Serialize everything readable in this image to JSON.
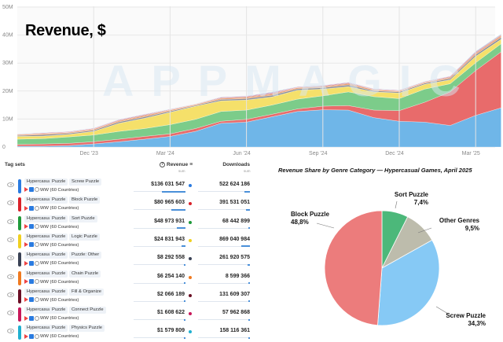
{
  "header": {
    "title": "Revenue, $",
    "watermark": "APPMAGIC"
  },
  "chart_data": [
    {
      "type": "area",
      "stacked": true,
      "title": "Revenue, $",
      "x": [
        "Sep '23",
        "Oct '23",
        "Nov '23",
        "Dec '23",
        "Jan '24",
        "Feb '24",
        "Mar '24",
        "Apr '24",
        "May '24",
        "Jun '24",
        "Jul '24",
        "Aug '24",
        "Sep '24",
        "Oct '24",
        "Nov '24",
        "Dec '24",
        "Jan '25",
        "Feb '25",
        "Mar '25",
        "Apr '25"
      ],
      "x_tick_labels": [
        "Dec '23",
        "Mar '24",
        "Jun '24",
        "Sep '24",
        "Dec '24",
        "Mar '25"
      ],
      "y_tick_labels": [
        "0",
        "10M",
        "20M",
        "30M",
        "40M",
        "50M"
      ],
      "ylim": [
        0,
        50
      ],
      "y_unit": "M",
      "grid": true,
      "series": [
        {
          "name": "Screw Puzzle",
          "color": "#6fb6e8",
          "values": [
            0.3,
            0.3,
            0.5,
            1.1,
            1.9,
            2.8,
            3.8,
            5.6,
            8.5,
            8.9,
            10.8,
            12.7,
            13.3,
            13.2,
            10.5,
            9.2,
            8.9,
            7.7,
            11.3,
            14.0
          ]
        },
        {
          "name": "Block Puzzle",
          "color": "#e86b6b",
          "values": [
            0.6,
            0.8,
            0.8,
            0.8,
            0.9,
            1.0,
            0.9,
            1.0,
            0.7,
            1.0,
            0.9,
            0.9,
            1.3,
            1.6,
            2.7,
            3.8,
            7.1,
            12.0,
            16.0,
            20.0
          ]
        },
        {
          "name": "Sort Puzzle",
          "color": "#7ccc8a",
          "values": [
            1.9,
            1.9,
            2.3,
            2.4,
            2.8,
            2.8,
            3.3,
            3.3,
            3.5,
            3.3,
            3.3,
            3.5,
            3.7,
            4.9,
            4.8,
            4.3,
            4.7,
            2.9,
            2.8,
            2.9
          ]
        },
        {
          "name": "Logic Puzzle",
          "color": "#f5e06a",
          "values": [
            1.0,
            0.9,
            0.9,
            1.3,
            2.9,
            3.7,
            4.4,
            4.7,
            3.8,
            3.6,
            2.9,
            3.2,
            2.4,
            1.9,
            1.7,
            2.0,
            1.7,
            1.4,
            2.3,
            1.6
          ]
        },
        {
          "name": "Puzzle: Other",
          "color": "#8a8f99",
          "values": [
            0.3,
            0.5,
            0.4,
            0.4,
            0.5,
            0.5,
            0.4,
            0.3,
            0.5,
            0.5,
            0.6,
            0.5,
            0.5,
            0.6,
            0.4,
            0.4,
            0.4,
            0.5,
            0.6,
            0.7
          ]
        },
        {
          "name": "Chain Puzzle",
          "color": "#f0a070",
          "values": [
            0.3,
            0.4,
            0.3,
            0.4,
            0.4,
            0.5,
            0.4,
            0.3,
            0.4,
            0.5,
            0.5,
            0.4,
            0.4,
            0.5,
            0.4,
            0.3,
            0.3,
            0.4,
            0.5,
            0.6
          ]
        },
        {
          "name": "Fill & Organize",
          "color": "#9a4a5a",
          "values": [
            0.1,
            0.1,
            0.1,
            0.1,
            0.2,
            0.2,
            0.1,
            0.1,
            0.2,
            0.2,
            0.2,
            0.1,
            0.2,
            0.2,
            0.1,
            0.1,
            0.1,
            0.2,
            0.2,
            0.2
          ]
        },
        {
          "name": "Connect Puzzle",
          "color": "#d86a9a",
          "values": [
            0.1,
            0.2,
            0.2,
            0.2,
            0.2,
            0.2,
            0.2,
            0.1,
            0.2,
            0.2,
            0.3,
            0.2,
            0.2,
            0.2,
            0.2,
            0.2,
            0.2,
            0.2,
            0.3,
            0.2
          ]
        },
        {
          "name": "Physics Puzzle",
          "color": "#8fd0e0",
          "values": [
            0.1,
            0.1,
            0.1,
            0.1,
            0.1,
            0.1,
            0.1,
            0.1,
            0.1,
            0.1,
            0.2,
            0.1,
            0.1,
            0.1,
            0.1,
            0.1,
            0.1,
            0.1,
            0.2,
            0.2
          ]
        }
      ]
    },
    {
      "type": "pie",
      "title": "Revenue Share by Genre Category — Hypercasual Games, April 2025",
      "slices": [
        {
          "label": "Sort Puzzle",
          "value": 7.4,
          "text": "7,4%",
          "color": "#4cb87a"
        },
        {
          "label": "Other Genres",
          "value": 9.5,
          "text": "9,5%",
          "color": "#bdbcac"
        },
        {
          "label": "Screw Puzzle",
          "value": 34.3,
          "text": "34,3%",
          "color": "#86c9f5"
        },
        {
          "label": "Block Puzzle",
          "value": 48.8,
          "text": "48,8%",
          "color": "#ec7c7c"
        }
      ]
    }
  ],
  "table": {
    "headers": {
      "tag_sets": "Tag sets",
      "revenue": "Revenue",
      "revenue_sub": "sum",
      "downloads": "Downloads",
      "downloads_sub": "sum"
    },
    "rows": [
      {
        "tags": [
          "Hypercasual",
          "Puzzle",
          "Screw Puzzle"
        ],
        "region": "WW (60 Countries)",
        "revenue": "$136 031 547",
        "downloads": "522 624 186",
        "color": "#2a7be0",
        "rev_share": 1.0,
        "dl_share": 0.6
      },
      {
        "tags": [
          "Hypercasual",
          "Puzzle",
          "Block Puzzle"
        ],
        "region": "WW (60 Countries)",
        "revenue": "$80 965 603",
        "downloads": "391 531 051",
        "color": "#d9222a",
        "rev_share": 0.6,
        "dl_share": 0.45
      },
      {
        "tags": [
          "Hypercasual",
          "Puzzle",
          "Sort Puzzle"
        ],
        "region": "WW (60 Countries)",
        "revenue": "$48 973 931",
        "downloads": "68 442 899",
        "color": "#1f9a3a",
        "rev_share": 0.36,
        "dl_share": 0.08
      },
      {
        "tags": [
          "Hypercasual",
          "Puzzle",
          "Logic Puzzle"
        ],
        "region": "WW (60 Countries)",
        "revenue": "$24 831 943",
        "downloads": "869 040 984",
        "color": "#f0d020",
        "rev_share": 0.18,
        "dl_share": 1.0
      },
      {
        "tags": [
          "Hypercasual",
          "Puzzle",
          "Puzzle: Other"
        ],
        "region": "WW (60 Countries)",
        "revenue": "$8 292 558",
        "downloads": "261 920 575",
        "color": "#3a4255",
        "rev_share": 0.06,
        "dl_share": 0.3
      },
      {
        "tags": [
          "Hypercasual",
          "Puzzle",
          "Chain Puzzle"
        ],
        "region": "WW (60 Countries)",
        "revenue": "$6 254 140",
        "downloads": "8 599 366",
        "color": "#f07a20",
        "rev_share": 0.05,
        "dl_share": 0.01
      },
      {
        "tags": [
          "Hypercasual",
          "Puzzle",
          "Fill & Organize"
        ],
        "region": "WW (60 Countries)",
        "revenue": "$2 066 189",
        "downloads": "131 609 307",
        "color": "#6a0e24",
        "rev_share": 0.02,
        "dl_share": 0.15
      },
      {
        "tags": [
          "Hypercasual",
          "Puzzle",
          "Connect Puzzle"
        ],
        "region": "WW (60 Countries)",
        "revenue": "$1 608 622",
        "downloads": "57 962 868",
        "color": "#c8185a",
        "rev_share": 0.01,
        "dl_share": 0.07
      },
      {
        "tags": [
          "Hypercasual",
          "Puzzle",
          "Physics Puzzle"
        ],
        "region": "WW (60 Countries)",
        "revenue": "$1 579 809",
        "downloads": "158 116 361",
        "color": "#20b0d0",
        "rev_share": 0.01,
        "dl_share": 0.18
      }
    ]
  }
}
